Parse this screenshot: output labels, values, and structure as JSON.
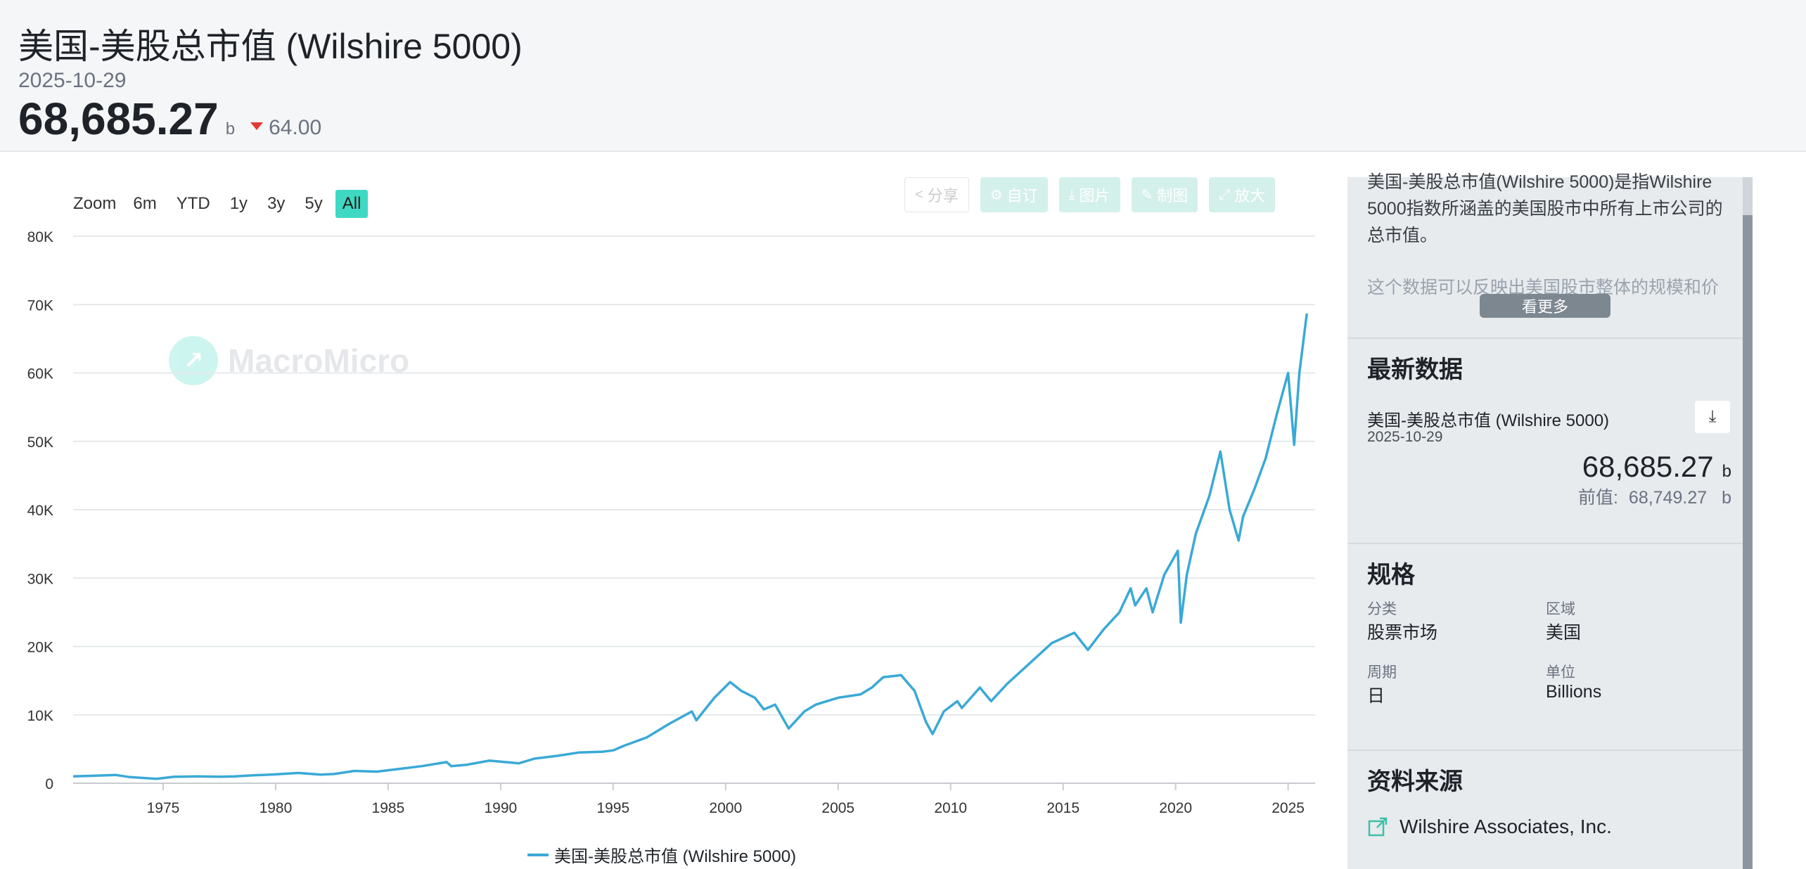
{
  "header": {
    "title": "美国-美股总市值 (Wilshire 5000)",
    "date": "2025-10-29",
    "value": "68,685.27",
    "unit": "b",
    "change": "64.00",
    "change_color": "#e53935"
  },
  "range": {
    "zoom_label": "Zoom",
    "buttons": [
      "6m",
      "YTD",
      "1y",
      "3y",
      "5y",
      "All"
    ],
    "active": "All",
    "active_color": "#3ed8c3"
  },
  "tools": [
    {
      "label": "分享",
      "icon": "share-icon"
    },
    {
      "label": "自订",
      "icon": "gear-icon"
    },
    {
      "label": "图片",
      "icon": "download-icon"
    },
    {
      "label": "制图",
      "icon": "pencil-icon"
    },
    {
      "label": "放大",
      "icon": "expand-icon"
    }
  ],
  "watermark": "MacroMicro",
  "chart_data": {
    "type": "line",
    "title": "",
    "xlabel": "",
    "ylabel": "",
    "xlim": [
      1971,
      2026.2
    ],
    "ylim": [
      0,
      80000
    ],
    "yticks": [
      0,
      10000,
      20000,
      30000,
      40000,
      50000,
      60000,
      70000,
      80000
    ],
    "ytick_labels": [
      "0",
      "10K",
      "20K",
      "30K",
      "40K",
      "50K",
      "60K",
      "70K",
      "80K"
    ],
    "xticks": [
      1975,
      1980,
      1985,
      1990,
      1995,
      2000,
      2005,
      2010,
      2015,
      2020,
      2025
    ],
    "xtick_labels": [
      "1975",
      "1980",
      "1985",
      "1990",
      "1995",
      "2000",
      "2005",
      "2010",
      "2015",
      "2020",
      "2025"
    ],
    "grid": true,
    "legend": "bottom",
    "series": [
      {
        "name": "美国-美股总市值 (Wilshire 5000)",
        "color": "#3aa9d6",
        "x": [
          1971.0,
          1972.0,
          1972.9,
          1973.5,
          1974.0,
          1974.7,
          1975.5,
          1976.5,
          1977.5,
          1978.2,
          1979.0,
          1980.0,
          1981.0,
          1982.0,
          1982.6,
          1983.5,
          1984.5,
          1985.5,
          1986.5,
          1987.6,
          1987.8,
          1988.5,
          1989.5,
          1990.5,
          1990.8,
          1991.5,
          1992.5,
          1993.5,
          1994.5,
          1995.0,
          1995.5,
          1996.5,
          1997.5,
          1998.5,
          1998.7,
          1999.5,
          2000.2,
          2000.7,
          2001.3,
          2001.7,
          2002.2,
          2002.8,
          2003.5,
          2004.0,
          2005.0,
          2006.0,
          2006.5,
          2007.0,
          2007.8,
          2008.4,
          2008.9,
          2009.2,
          2009.7,
          2010.3,
          2010.5,
          2011.3,
          2011.8,
          2012.5,
          2013.5,
          2014.5,
          2015.5,
          2016.1,
          2016.8,
          2017.5,
          2018.0,
          2018.2,
          2018.7,
          2018.98,
          2019.5,
          2020.1,
          2020.23,
          2020.5,
          2020.9,
          2021.5,
          2021.99,
          2022.4,
          2022.8,
          2023.0,
          2023.5,
          2024.0,
          2024.5,
          2025.0,
          2025.27,
          2025.5,
          2025.83
        ],
        "values": [
          1000,
          1100,
          1200,
          900,
          800,
          650,
          950,
          1000,
          950,
          1000,
          1150,
          1300,
          1500,
          1250,
          1350,
          1800,
          1700,
          2100,
          2500,
          3100,
          2500,
          2700,
          3300,
          3000,
          2900,
          3600,
          4000,
          4500,
          4600,
          4800,
          5500,
          6700,
          8700,
          10500,
          9200,
          12500,
          14800,
          13500,
          12500,
          10800,
          11500,
          8000,
          10500,
          11500,
          12500,
          13000,
          14000,
          15500,
          15800,
          13500,
          9000,
          7200,
          10500,
          12000,
          11000,
          14000,
          12000,
          14500,
          17500,
          20500,
          22000,
          19500,
          22500,
          25000,
          28500,
          26000,
          28500,
          25000,
          30500,
          34000,
          23500,
          30500,
          36500,
          42000,
          48500,
          40000,
          35500,
          39000,
          43000,
          47500,
          54000,
          60000,
          49500,
          60000,
          68685
        ]
      }
    ]
  },
  "side": {
    "desc_1": "美国-美股总市值(Wilshire 5000)是指Wilshire 5000指数所涵盖的美国股市中所有上市公司的总市值。",
    "desc_2": "这个数据可以反映出美国股市整体的规模和价",
    "more_label": "看更多",
    "latest_title": "最新数据",
    "latest_name": "美国-美股总市值 (Wilshire 5000)",
    "latest_date": "2025-10-29",
    "latest_value": "68,685.27",
    "latest_unit": "b",
    "prev_label": "前值:",
    "prev_value": "68,749.27",
    "prev_unit": "b",
    "spec_title": "规格",
    "spec": {
      "category_label": "分类",
      "category_value": "股票市场",
      "region_label": "区域",
      "region_value": "美国",
      "period_label": "周期",
      "period_value": "日",
      "unit_label": "单位",
      "unit_value": "Billions"
    },
    "source_title": "资料来源",
    "source_name": "Wilshire Associates, Inc."
  }
}
